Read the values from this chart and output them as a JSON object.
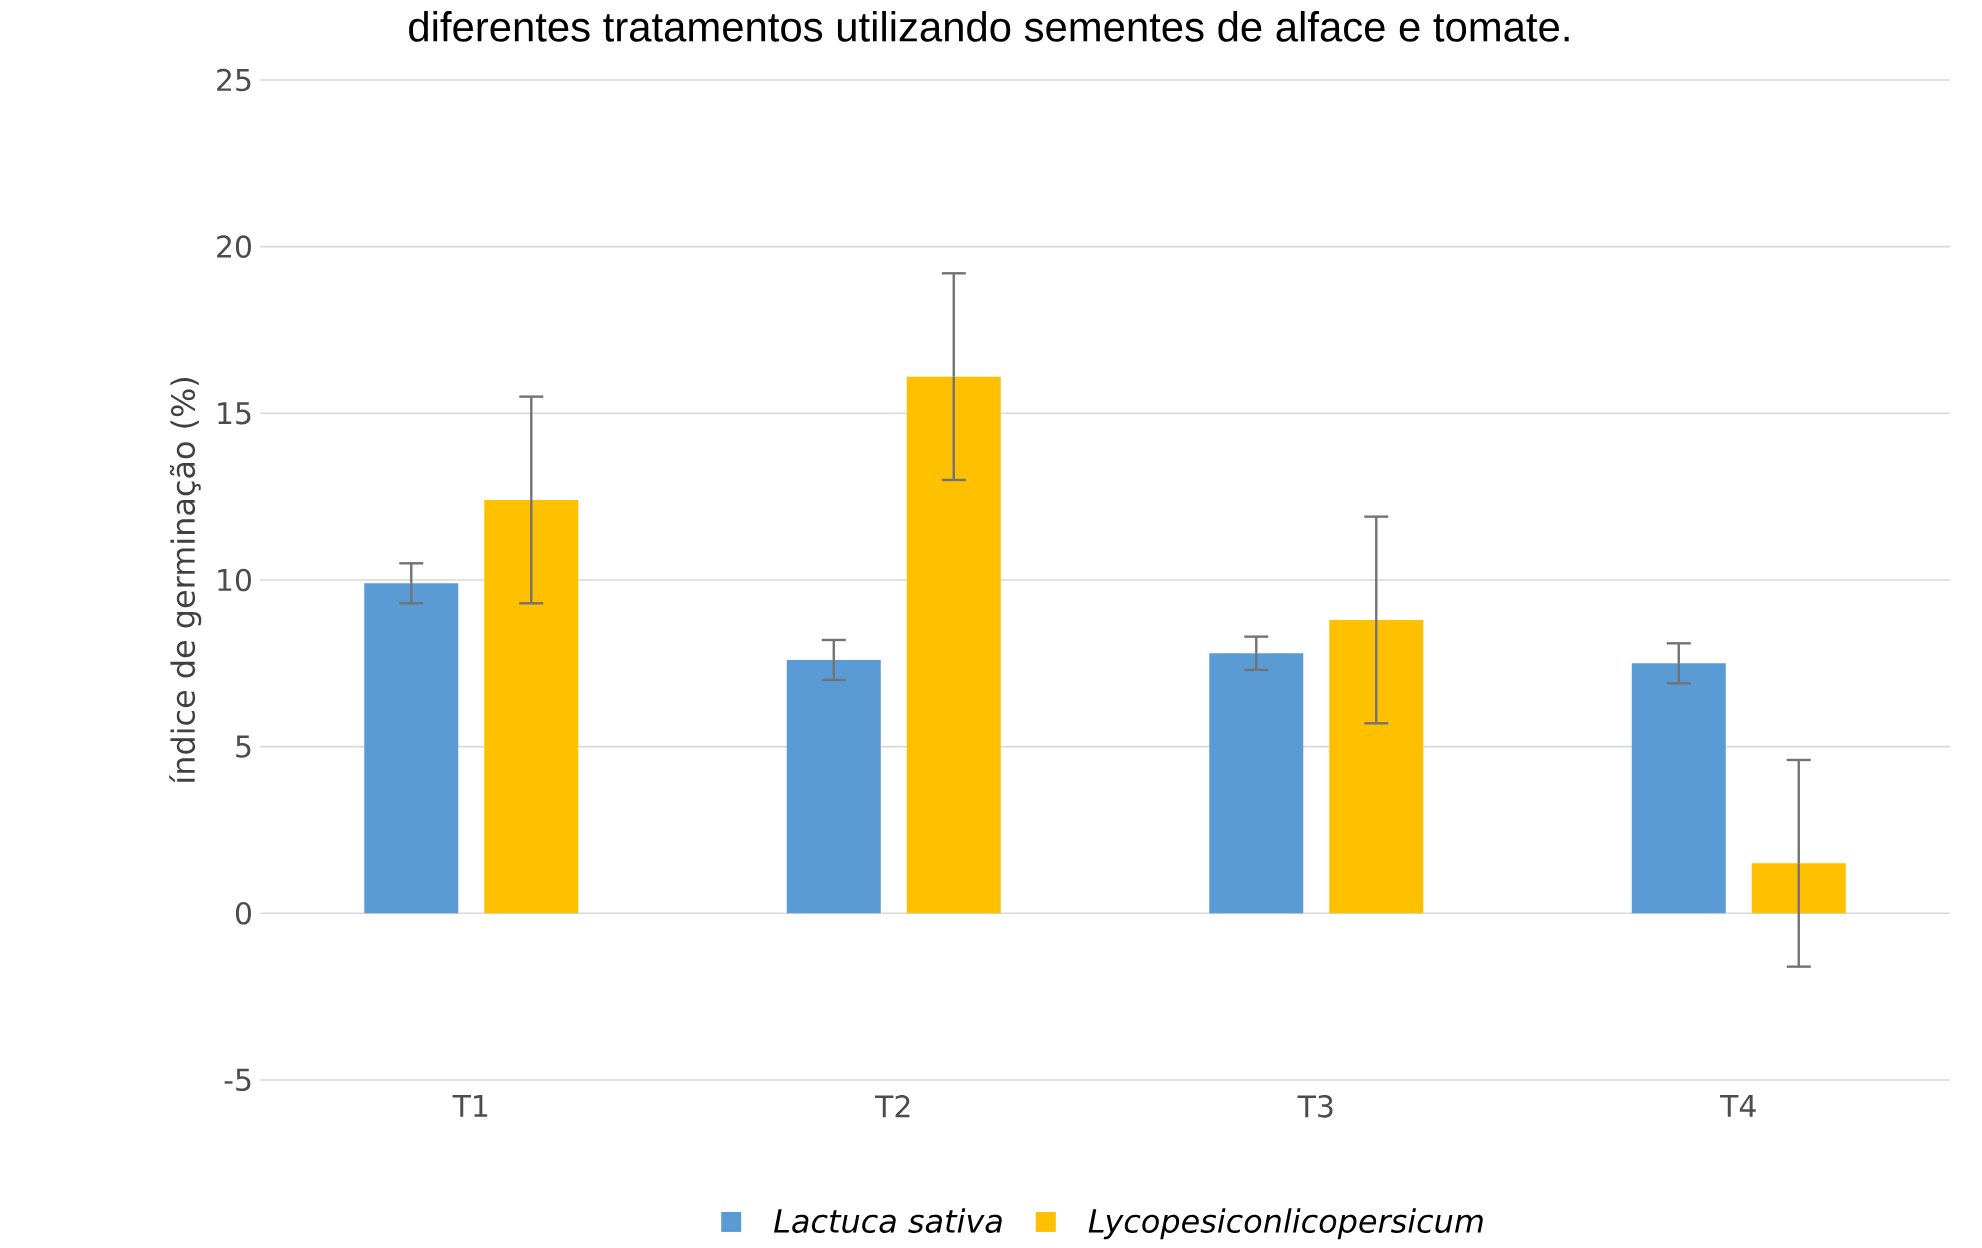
{
  "chart_data": {
    "type": "bar",
    "title": "diferentes tratamentos utilizando sementes de alface e tomate.",
    "ylabel": "índice de germinação (%)",
    "categories": [
      "T1",
      "T2",
      "T3",
      "T4"
    ],
    "series": [
      {
        "name": "Lactuca sativa",
        "color": "#5b9bd5",
        "values": [
          9.9,
          7.6,
          7.8,
          7.5
        ],
        "errors": [
          0.6,
          0.6,
          0.5,
          0.6
        ]
      },
      {
        "name": "Lycopesiconlicopersicum",
        "color": "#ffc000",
        "values": [
          12.4,
          16.1,
          8.8,
          1.5
        ],
        "errors": [
          3.1,
          3.1,
          3.1,
          3.1
        ]
      }
    ],
    "ylim": [
      -5,
      25
    ],
    "yticks": [
      -5,
      0,
      5,
      10,
      15,
      20,
      25
    ],
    "grid": "y",
    "legend": "bottom"
  }
}
